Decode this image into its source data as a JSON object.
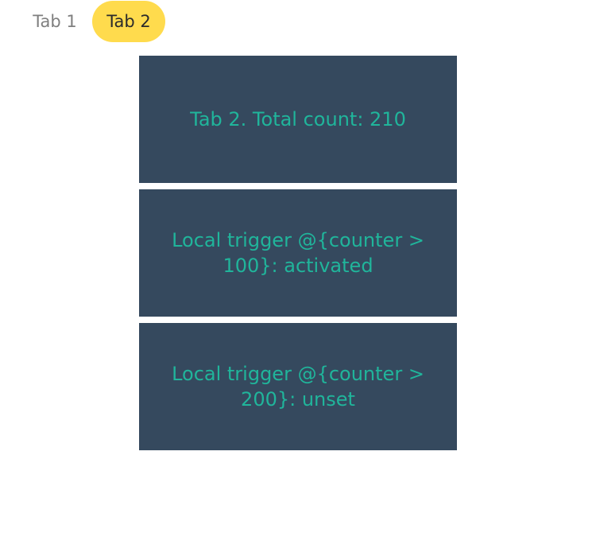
{
  "colors": {
    "accent": "#ffdb4d",
    "panel_bg": "#35495e",
    "panel_text": "#20b59b",
    "tab_inactive": "#7f7f7f",
    "tab_active_text": "#2b2b2b"
  },
  "tabs": [
    {
      "label": "Tab 1",
      "active": false
    },
    {
      "label": "Tab 2",
      "active": true
    }
  ],
  "panels": [
    {
      "text": "Tab 2. Total count: 210"
    },
    {
      "text": "Local trigger @{counter > 100}: activated"
    },
    {
      "text": "Local trigger @{counter > 200}: unset"
    }
  ]
}
